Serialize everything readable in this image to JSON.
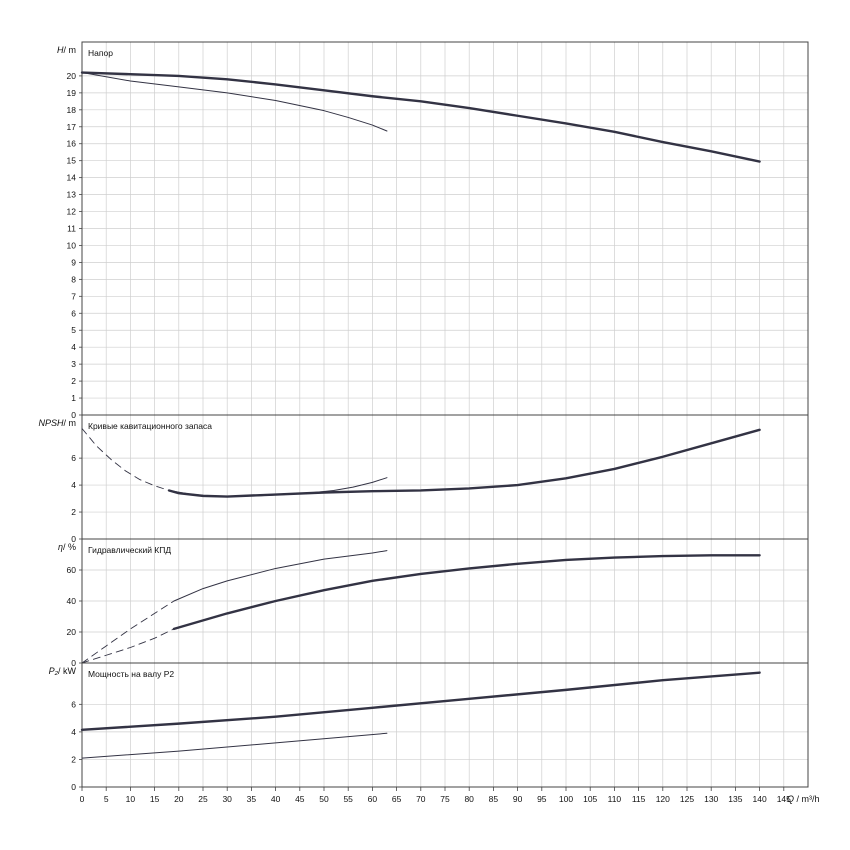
{
  "colors": {
    "grid": "#cfcfcf",
    "frame": "#444444",
    "curve": "#333344",
    "text": "#111111"
  },
  "x_axis": {
    "label": "Q",
    "unit": "/ m³/h",
    "range": [
      0,
      150
    ],
    "tick_step": 5,
    "tick_labels": [
      "0",
      "5",
      "10",
      "15",
      "20",
      "25",
      "30",
      "35",
      "40",
      "45",
      "50",
      "55",
      "60",
      "65",
      "70",
      "75",
      "80",
      "85",
      "90",
      "95",
      "100",
      "105",
      "110",
      "115",
      "120",
      "125",
      "130",
      "135",
      "140",
      "145"
    ]
  },
  "chart_data": [
    {
      "type": "line",
      "title": "Напор",
      "ylabel": "H",
      "yunit": "/ m",
      "ylim": [
        0,
        22
      ],
      "yticks": [
        0,
        1,
        2,
        3,
        4,
        5,
        6,
        7,
        8,
        9,
        10,
        11,
        12,
        13,
        14,
        15,
        16,
        17,
        18,
        19,
        20
      ],
      "grid": true,
      "series": [
        {
          "style": "thick",
          "x": [
            0,
            10,
            20,
            30,
            40,
            50,
            60,
            70,
            80,
            90,
            100,
            110,
            120,
            130,
            140
          ],
          "y": [
            20.2,
            20.1,
            20.0,
            19.8,
            19.5,
            19.15,
            18.8,
            18.5,
            18.1,
            17.65,
            17.2,
            16.7,
            16.1,
            15.55,
            14.95
          ]
        },
        {
          "style": "thin",
          "x": [
            0,
            10,
            20,
            30,
            40,
            50,
            55,
            60,
            63
          ],
          "y": [
            20.2,
            19.7,
            19.35,
            19.0,
            18.55,
            17.95,
            17.55,
            17.1,
            16.75
          ]
        }
      ]
    },
    {
      "type": "line",
      "title": "Кривые кавитационного запаса",
      "ylabel": "NPSH",
      "yunit": "/ m",
      "ylim": [
        0,
        9.2
      ],
      "yticks": [
        0,
        2,
        4,
        6
      ],
      "grid": true,
      "series": [
        {
          "style": "thick",
          "x": [
            18,
            20,
            25,
            30,
            40,
            50,
            60,
            70,
            80,
            90,
            100,
            110,
            120,
            130,
            140
          ],
          "y": [
            3.6,
            3.4,
            3.2,
            3.15,
            3.3,
            3.45,
            3.55,
            3.6,
            3.75,
            4.0,
            4.5,
            5.2,
            6.1,
            7.1,
            8.1
          ]
        },
        {
          "style": "thin",
          "x": [
            18,
            22,
            26,
            30,
            36,
            42,
            48,
            52,
            56,
            60,
            63
          ],
          "y": [
            3.6,
            3.35,
            3.2,
            3.15,
            3.2,
            3.3,
            3.45,
            3.6,
            3.85,
            4.2,
            4.55
          ]
        },
        {
          "style": "dashed",
          "x": [
            0,
            3,
            6,
            9,
            12,
            15,
            18
          ],
          "y": [
            8.2,
            6.9,
            5.9,
            5.05,
            4.4,
            3.95,
            3.6
          ]
        }
      ]
    },
    {
      "type": "line",
      "title": "Гидравлический КПД",
      "ylabel": "η",
      "yunit": "/ %",
      "ylim": [
        0,
        80
      ],
      "yticks": [
        0,
        20,
        40,
        60
      ],
      "grid": true,
      "series": [
        {
          "style": "thick",
          "x": [
            19,
            30,
            40,
            50,
            60,
            70,
            80,
            90,
            100,
            110,
            120,
            130,
            140
          ],
          "y": [
            22,
            32,
            40,
            47,
            53,
            57.5,
            61,
            64,
            66.5,
            68,
            69,
            69.5,
            69.5
          ]
        },
        {
          "style": "thin",
          "x": [
            19,
            25,
            30,
            40,
            50,
            60,
            63
          ],
          "y": [
            40,
            48,
            53,
            61,
            67,
            71,
            72.5
          ]
        },
        {
          "style": "dashed",
          "x": [
            0,
            5,
            10,
            15,
            19
          ],
          "y": [
            0,
            5,
            10,
            16,
            22
          ]
        },
        {
          "style": "dashed",
          "x": [
            0,
            5,
            10,
            15,
            19
          ],
          "y": [
            0,
            11,
            22,
            32,
            40
          ]
        }
      ]
    },
    {
      "type": "line",
      "title": "Мощность на валу Р2",
      "ylabel": "P₂",
      "yunit": "/ kW",
      "ylim": [
        0,
        9
      ],
      "yticks": [
        0,
        2,
        4,
        6
      ],
      "grid": true,
      "series": [
        {
          "style": "thick",
          "x": [
            0,
            20,
            40,
            60,
            80,
            100,
            120,
            140
          ],
          "y": [
            4.15,
            4.6,
            5.1,
            5.75,
            6.4,
            7.05,
            7.75,
            8.3
          ]
        },
        {
          "style": "thin",
          "x": [
            0,
            20,
            40,
            63
          ],
          "y": [
            2.1,
            2.6,
            3.2,
            3.9
          ]
        }
      ]
    }
  ]
}
